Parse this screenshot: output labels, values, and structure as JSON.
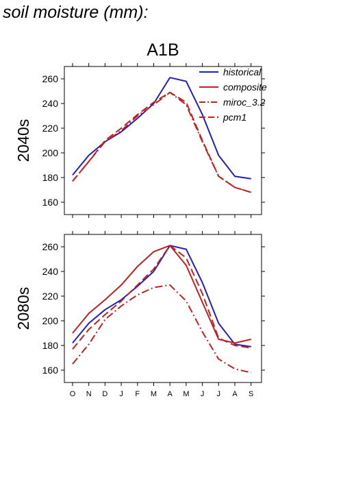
{
  "page_title": "soil moisture (mm):",
  "chart_data": {
    "type": "line",
    "title": "A1B",
    "categories": [
      "O",
      "N",
      "D",
      "J",
      "F",
      "M",
      "A",
      "M",
      "J",
      "J",
      "A",
      "S"
    ],
    "ylim": [
      150,
      270
    ],
    "yticks": [
      160,
      180,
      200,
      220,
      240,
      260
    ],
    "legend_placement": "top-right",
    "legend": [
      {
        "name": "historical",
        "color": "#1f1fbf",
        "dash": "solid"
      },
      {
        "name": "composite",
        "color": "#c0201f",
        "dash": "solid"
      },
      {
        "name": "miroc_3.2",
        "color": "#c0201f",
        "dash": "dashdot"
      },
      {
        "name": "pcm1",
        "color": "#c0201f",
        "dash": "dashed"
      }
    ],
    "panels": [
      {
        "label": "2040s",
        "series": [
          {
            "name": "historical",
            "values": [
              182,
              198,
              209,
              217,
              228,
              240,
              261,
              258,
              231,
              198,
              181,
              179
            ]
          },
          {
            "name": "miroc_3.2",
            "values": [
              177,
              193,
              209,
              218,
              230,
              239,
              249,
              239,
              209,
              181,
              172,
              168
            ]
          },
          {
            "name": "pcm1",
            "values": [
              177,
              193,
              210,
              220,
              231,
              241,
              249,
              241,
              210,
              181,
              172,
              168
            ]
          }
        ]
      },
      {
        "label": "2080s",
        "series": [
          {
            "name": "historical",
            "values": [
              182,
              198,
              209,
              217,
              228,
              240,
              261,
              258,
              231,
              198,
              181,
              179
            ]
          },
          {
            "name": "composite",
            "values": [
              190,
              206,
              217,
              229,
              244,
              256,
              261,
              245,
              215,
              185,
              182,
              185
            ]
          },
          {
            "name": "miroc_3.2",
            "values": [
              165,
              181,
              201,
              212,
              221,
              227,
              229,
              216,
              191,
              169,
              161,
              158
            ]
          },
          {
            "name": "pcm1",
            "values": [
              177,
              193,
              205,
              216,
              229,
              242,
              261,
              251,
              222,
              186,
              180,
              178
            ]
          }
        ]
      }
    ]
  }
}
